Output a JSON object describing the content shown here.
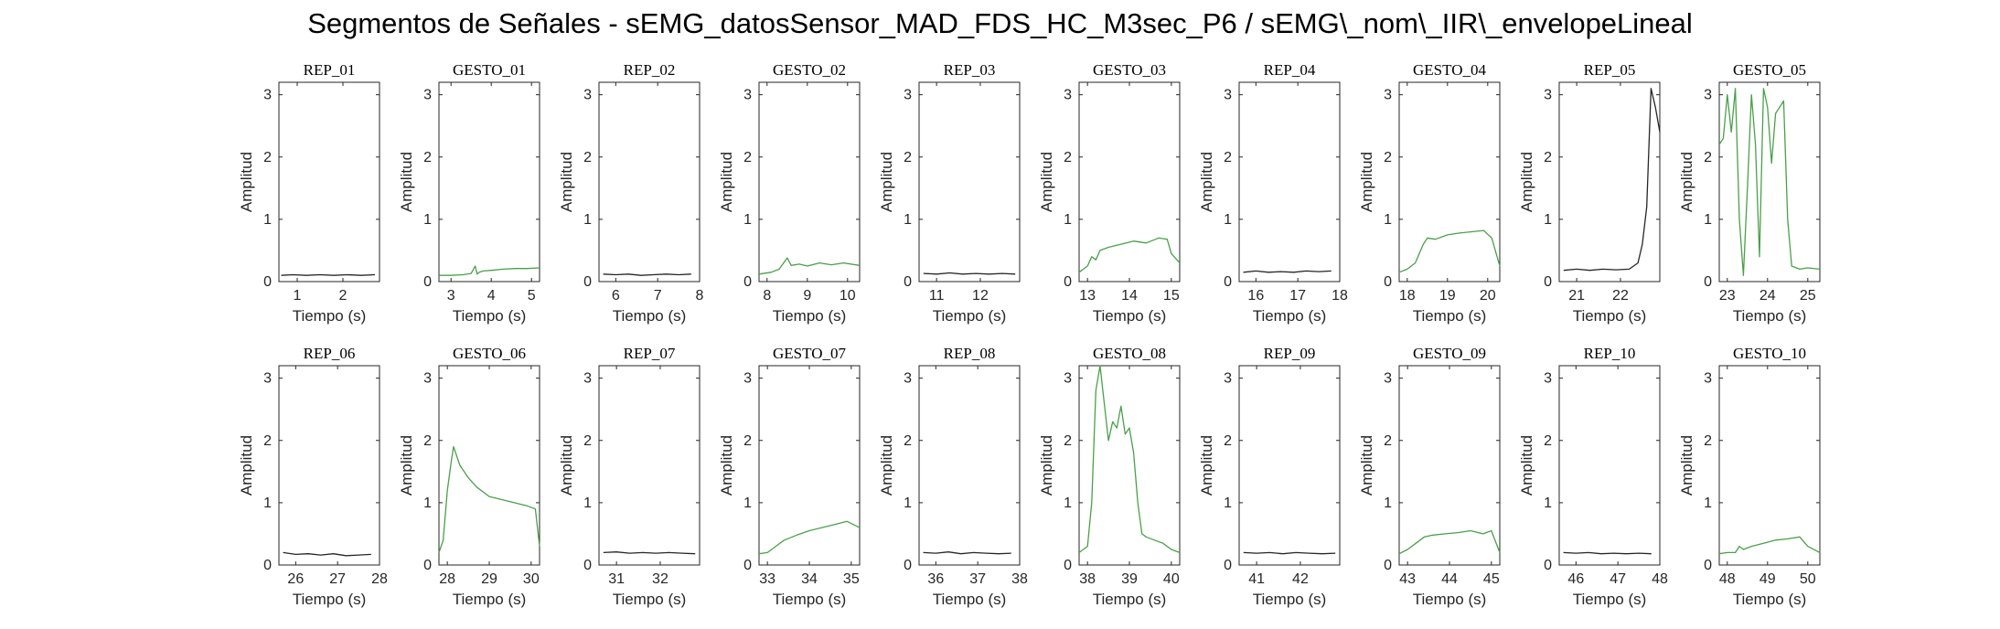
{
  "figure_title": "Segmentos de Señales - sEMG_datosSensor_MAD_FDS_HC_M3sec_P6 / sEMG\\_nom\\_IIR\\_envelopeLineal",
  "colors": {
    "rep": "#262626",
    "gesto": "#4aa04a",
    "axis": "#262626"
  },
  "chart_data": [
    {
      "type": "line",
      "title": "REP_01",
      "xlabel": "Tiempo (s)",
      "ylabel": "Amplitud",
      "xlim": [
        0.6,
        2.8
      ],
      "ylim": [
        0,
        3.2
      ],
      "xticks": [
        1,
        2
      ],
      "yticks": [
        0,
        1,
        2,
        3
      ],
      "kind": "rep",
      "x": [
        0.65,
        0.9,
        1.2,
        1.5,
        1.8,
        2.1,
        2.4,
        2.7
      ],
      "y": [
        0.1,
        0.11,
        0.1,
        0.11,
        0.1,
        0.11,
        0.1,
        0.11
      ]
    },
    {
      "type": "line",
      "title": "GESTO_01",
      "xlabel": "Tiempo (s)",
      "ylabel": "Amplitud",
      "xlim": [
        2.7,
        5.2
      ],
      "ylim": [
        0,
        3.2
      ],
      "xticks": [
        3,
        4,
        5
      ],
      "yticks": [
        0,
        1,
        2,
        3
      ],
      "kind": "gesto",
      "x": [
        2.7,
        3.0,
        3.3,
        3.5,
        3.6,
        3.65,
        3.7,
        3.8,
        4.0,
        4.3,
        4.6,
        4.9,
        5.2
      ],
      "y": [
        0.1,
        0.1,
        0.11,
        0.13,
        0.25,
        0.12,
        0.15,
        0.17,
        0.18,
        0.2,
        0.21,
        0.21,
        0.22
      ]
    },
    {
      "type": "line",
      "title": "REP_02",
      "xlabel": "Tiempo (s)",
      "ylabel": "Amplitud",
      "xlim": [
        5.6,
        8.0
      ],
      "ylim": [
        0,
        3.2
      ],
      "xticks": [
        6,
        7,
        8
      ],
      "yticks": [
        0,
        1,
        2,
        3
      ],
      "kind": "rep",
      "x": [
        5.7,
        6.0,
        6.3,
        6.6,
        6.9,
        7.2,
        7.5,
        7.8
      ],
      "y": [
        0.12,
        0.11,
        0.12,
        0.1,
        0.11,
        0.12,
        0.11,
        0.12
      ]
    },
    {
      "type": "line",
      "title": "GESTO_02",
      "xlabel": "Tiempo (s)",
      "ylabel": "Amplitud",
      "xlim": [
        7.8,
        10.3
      ],
      "ylim": [
        0,
        3.2
      ],
      "xticks": [
        8,
        9,
        10
      ],
      "yticks": [
        0,
        1,
        2,
        3
      ],
      "kind": "gesto",
      "x": [
        7.8,
        8.1,
        8.3,
        8.5,
        8.6,
        8.8,
        9.0,
        9.3,
        9.6,
        9.9,
        10.3
      ],
      "y": [
        0.12,
        0.15,
        0.2,
        0.38,
        0.26,
        0.28,
        0.25,
        0.3,
        0.27,
        0.3,
        0.26
      ]
    },
    {
      "type": "line",
      "title": "REP_03",
      "xlabel": "Tiempo (s)",
      "ylabel": "Amplitud",
      "xlim": [
        10.6,
        12.9
      ],
      "ylim": [
        0,
        3.2
      ],
      "xticks": [
        11,
        12
      ],
      "yticks": [
        0,
        1,
        2,
        3
      ],
      "kind": "rep",
      "x": [
        10.7,
        11.0,
        11.3,
        11.6,
        11.9,
        12.2,
        12.5,
        12.8
      ],
      "y": [
        0.13,
        0.12,
        0.14,
        0.12,
        0.13,
        0.12,
        0.13,
        0.12
      ]
    },
    {
      "type": "line",
      "title": "GESTO_03",
      "xlabel": "Tiempo (s)",
      "ylabel": "Amplitud",
      "xlim": [
        12.8,
        15.2
      ],
      "ylim": [
        0,
        3.2
      ],
      "xticks": [
        13,
        14,
        15
      ],
      "yticks": [
        0,
        1,
        2,
        3
      ],
      "kind": "gesto",
      "x": [
        12.8,
        13.0,
        13.1,
        13.2,
        13.3,
        13.5,
        13.8,
        14.1,
        14.4,
        14.7,
        14.9,
        15.0,
        15.2
      ],
      "y": [
        0.15,
        0.25,
        0.4,
        0.35,
        0.5,
        0.55,
        0.6,
        0.65,
        0.62,
        0.7,
        0.68,
        0.45,
        0.3
      ]
    },
    {
      "type": "line",
      "title": "REP_04",
      "xlabel": "Tiempo (s)",
      "ylabel": "Amplitud",
      "xlim": [
        15.6,
        18.0
      ],
      "ylim": [
        0,
        3.2
      ],
      "xticks": [
        16,
        17,
        18
      ],
      "yticks": [
        0,
        1,
        2,
        3
      ],
      "kind": "rep",
      "x": [
        15.7,
        16.0,
        16.3,
        16.6,
        16.9,
        17.2,
        17.5,
        17.8
      ],
      "y": [
        0.15,
        0.17,
        0.15,
        0.16,
        0.15,
        0.17,
        0.16,
        0.17
      ]
    },
    {
      "type": "line",
      "title": "GESTO_04",
      "xlabel": "Tiempo (s)",
      "ylabel": "Amplitud",
      "xlim": [
        17.8,
        20.3
      ],
      "ylim": [
        0,
        3.2
      ],
      "xticks": [
        18,
        19,
        20
      ],
      "yticks": [
        0,
        1,
        2,
        3
      ],
      "kind": "gesto",
      "x": [
        17.8,
        18.0,
        18.2,
        18.4,
        18.5,
        18.7,
        19.0,
        19.3,
        19.6,
        19.9,
        20.1,
        20.3
      ],
      "y": [
        0.15,
        0.2,
        0.3,
        0.6,
        0.7,
        0.68,
        0.75,
        0.78,
        0.8,
        0.82,
        0.7,
        0.25
      ]
    },
    {
      "type": "line",
      "title": "REP_05",
      "xlabel": "Tiempo (s)",
      "ylabel": "Amplitud",
      "xlim": [
        20.6,
        22.9
      ],
      "ylim": [
        0,
        3.2
      ],
      "xticks": [
        21,
        22
      ],
      "yticks": [
        0,
        1,
        2,
        3
      ],
      "kind": "rep",
      "x": [
        20.7,
        21.0,
        21.3,
        21.6,
        21.9,
        22.2,
        22.4,
        22.5,
        22.6,
        22.7,
        22.8,
        22.9
      ],
      "y": [
        0.18,
        0.2,
        0.18,
        0.2,
        0.19,
        0.2,
        0.3,
        0.6,
        1.2,
        3.1,
        2.8,
        2.4
      ]
    },
    {
      "type": "line",
      "title": "GESTO_05",
      "xlabel": "Tiempo (s)",
      "ylabel": "Amplitud",
      "xlim": [
        22.8,
        25.3
      ],
      "ylim": [
        0,
        3.2
      ],
      "xticks": [
        23,
        24,
        25
      ],
      "yticks": [
        0,
        1,
        2,
        3
      ],
      "kind": "gesto",
      "x": [
        22.8,
        22.9,
        23.0,
        23.1,
        23.2,
        23.3,
        23.4,
        23.5,
        23.6,
        23.7,
        23.8,
        23.9,
        24.0,
        24.1,
        24.2,
        24.3,
        24.4,
        24.5,
        24.6,
        24.8,
        25.0,
        25.3
      ],
      "y": [
        2.2,
        2.3,
        3.0,
        2.4,
        3.1,
        1.0,
        0.1,
        1.5,
        3.0,
        2.2,
        0.4,
        3.1,
        2.8,
        1.9,
        2.7,
        2.8,
        2.9,
        1.0,
        0.25,
        0.2,
        0.22,
        0.2
      ]
    },
    {
      "type": "line",
      "title": "REP_06",
      "xlabel": "Tiempo (s)",
      "ylabel": "Amplitud",
      "xlim": [
        25.6,
        28.0
      ],
      "ylim": [
        0,
        3.2
      ],
      "xticks": [
        26,
        27,
        28
      ],
      "yticks": [
        0,
        1,
        2,
        3
      ],
      "kind": "rep",
      "x": [
        25.7,
        26.0,
        26.3,
        26.6,
        26.9,
        27.2,
        27.5,
        27.8
      ],
      "y": [
        0.2,
        0.17,
        0.18,
        0.16,
        0.18,
        0.15,
        0.16,
        0.17
      ]
    },
    {
      "type": "line",
      "title": "GESTO_06",
      "xlabel": "Tiempo (s)",
      "ylabel": "Amplitud",
      "xlim": [
        27.8,
        30.2
      ],
      "ylim": [
        0,
        3.2
      ],
      "xticks": [
        28,
        29,
        30
      ],
      "yticks": [
        0,
        1,
        2,
        3
      ],
      "kind": "gesto",
      "x": [
        27.8,
        27.9,
        28.0,
        28.1,
        28.15,
        28.2,
        28.3,
        28.5,
        28.7,
        29.0,
        29.3,
        29.6,
        29.9,
        30.1,
        30.2
      ],
      "y": [
        0.2,
        0.4,
        1.2,
        1.7,
        1.9,
        1.8,
        1.6,
        1.4,
        1.25,
        1.1,
        1.05,
        1.0,
        0.95,
        0.9,
        0.3
      ]
    },
    {
      "type": "line",
      "title": "REP_07",
      "xlabel": "Tiempo (s)",
      "ylabel": "Amplitud",
      "xlim": [
        30.6,
        32.9
      ],
      "ylim": [
        0,
        3.2
      ],
      "xticks": [
        31,
        32
      ],
      "yticks": [
        0,
        1,
        2,
        3
      ],
      "kind": "rep",
      "x": [
        30.7,
        31.0,
        31.3,
        31.6,
        31.9,
        32.2,
        32.5,
        32.8
      ],
      "y": [
        0.2,
        0.21,
        0.19,
        0.2,
        0.19,
        0.2,
        0.19,
        0.18
      ]
    },
    {
      "type": "line",
      "title": "GESTO_07",
      "xlabel": "Tiempo (s)",
      "ylabel": "Amplitud",
      "xlim": [
        32.8,
        35.2
      ],
      "ylim": [
        0,
        3.2
      ],
      "xticks": [
        33,
        34,
        35
      ],
      "yticks": [
        0,
        1,
        2,
        3
      ],
      "kind": "gesto",
      "x": [
        32.8,
        33.0,
        33.2,
        33.4,
        33.7,
        34.0,
        34.3,
        34.6,
        34.9,
        35.2
      ],
      "y": [
        0.18,
        0.2,
        0.3,
        0.4,
        0.48,
        0.55,
        0.6,
        0.65,
        0.7,
        0.6
      ]
    },
    {
      "type": "line",
      "title": "REP_08",
      "xlabel": "Tiempo (s)",
      "ylabel": "Amplitud",
      "xlim": [
        35.6,
        38.0
      ],
      "ylim": [
        0,
        3.2
      ],
      "xticks": [
        36,
        37,
        38
      ],
      "yticks": [
        0,
        1,
        2,
        3
      ],
      "kind": "rep",
      "x": [
        35.7,
        36.0,
        36.3,
        36.6,
        36.9,
        37.2,
        37.5,
        37.8
      ],
      "y": [
        0.2,
        0.19,
        0.21,
        0.18,
        0.2,
        0.19,
        0.18,
        0.19
      ]
    },
    {
      "type": "line",
      "title": "GESTO_08",
      "xlabel": "Tiempo (s)",
      "ylabel": "Amplitud",
      "xlim": [
        37.8,
        40.2
      ],
      "ylim": [
        0,
        3.2
      ],
      "xticks": [
        38,
        39,
        40
      ],
      "yticks": [
        0,
        1,
        2,
        3
      ],
      "kind": "gesto",
      "x": [
        37.8,
        38.0,
        38.1,
        38.2,
        38.3,
        38.4,
        38.5,
        38.6,
        38.7,
        38.8,
        38.9,
        39.0,
        39.1,
        39.2,
        39.3,
        39.4,
        39.6,
        39.8,
        40.0,
        40.2
      ],
      "y": [
        0.2,
        0.3,
        1.0,
        2.8,
        3.2,
        2.6,
        2.0,
        2.3,
        2.2,
        2.55,
        2.1,
        2.2,
        1.8,
        1.0,
        0.5,
        0.45,
        0.4,
        0.35,
        0.25,
        0.2
      ]
    },
    {
      "type": "line",
      "title": "REP_09",
      "xlabel": "Tiempo (s)",
      "ylabel": "Amplitud",
      "xlim": [
        40.6,
        42.9
      ],
      "ylim": [
        0,
        3.2
      ],
      "xticks": [
        41,
        42
      ],
      "yticks": [
        0,
        1,
        2,
        3
      ],
      "kind": "rep",
      "x": [
        40.7,
        41.0,
        41.3,
        41.6,
        41.9,
        42.2,
        42.5,
        42.8
      ],
      "y": [
        0.2,
        0.19,
        0.2,
        0.18,
        0.2,
        0.19,
        0.18,
        0.19
      ]
    },
    {
      "type": "line",
      "title": "GESTO_09",
      "xlabel": "Tiempo (s)",
      "ylabel": "Amplitud",
      "xlim": [
        42.8,
        45.2
      ],
      "ylim": [
        0,
        3.2
      ],
      "xticks": [
        43,
        44,
        45
      ],
      "yticks": [
        0,
        1,
        2,
        3
      ],
      "kind": "gesto",
      "x": [
        42.8,
        43.0,
        43.2,
        43.4,
        43.6,
        43.9,
        44.2,
        44.5,
        44.8,
        45.0,
        45.2
      ],
      "y": [
        0.18,
        0.25,
        0.35,
        0.45,
        0.48,
        0.5,
        0.52,
        0.55,
        0.5,
        0.55,
        0.2
      ]
    },
    {
      "type": "line",
      "title": "REP_10",
      "xlabel": "Tiempo (s)",
      "ylabel": "Amplitud",
      "xlim": [
        45.6,
        48.0
      ],
      "ylim": [
        0,
        3.2
      ],
      "xticks": [
        46,
        47,
        48
      ],
      "yticks": [
        0,
        1,
        2,
        3
      ],
      "kind": "rep",
      "x": [
        45.7,
        46.0,
        46.3,
        46.6,
        46.9,
        47.2,
        47.5,
        47.8
      ],
      "y": [
        0.2,
        0.19,
        0.2,
        0.18,
        0.19,
        0.18,
        0.19,
        0.18
      ]
    },
    {
      "type": "line",
      "title": "GESTO_10",
      "xlabel": "Tiempo (s)",
      "ylabel": "Amplitud",
      "xlim": [
        47.8,
        50.3
      ],
      "ylim": [
        0,
        3.2
      ],
      "xticks": [
        48,
        49,
        50
      ],
      "yticks": [
        0,
        1,
        2,
        3
      ],
      "kind": "gesto",
      "x": [
        47.8,
        48.0,
        48.2,
        48.3,
        48.4,
        48.6,
        48.9,
        49.2,
        49.5,
        49.8,
        50.0,
        50.3
      ],
      "y": [
        0.18,
        0.2,
        0.2,
        0.3,
        0.25,
        0.3,
        0.35,
        0.4,
        0.42,
        0.45,
        0.3,
        0.2
      ]
    }
  ]
}
